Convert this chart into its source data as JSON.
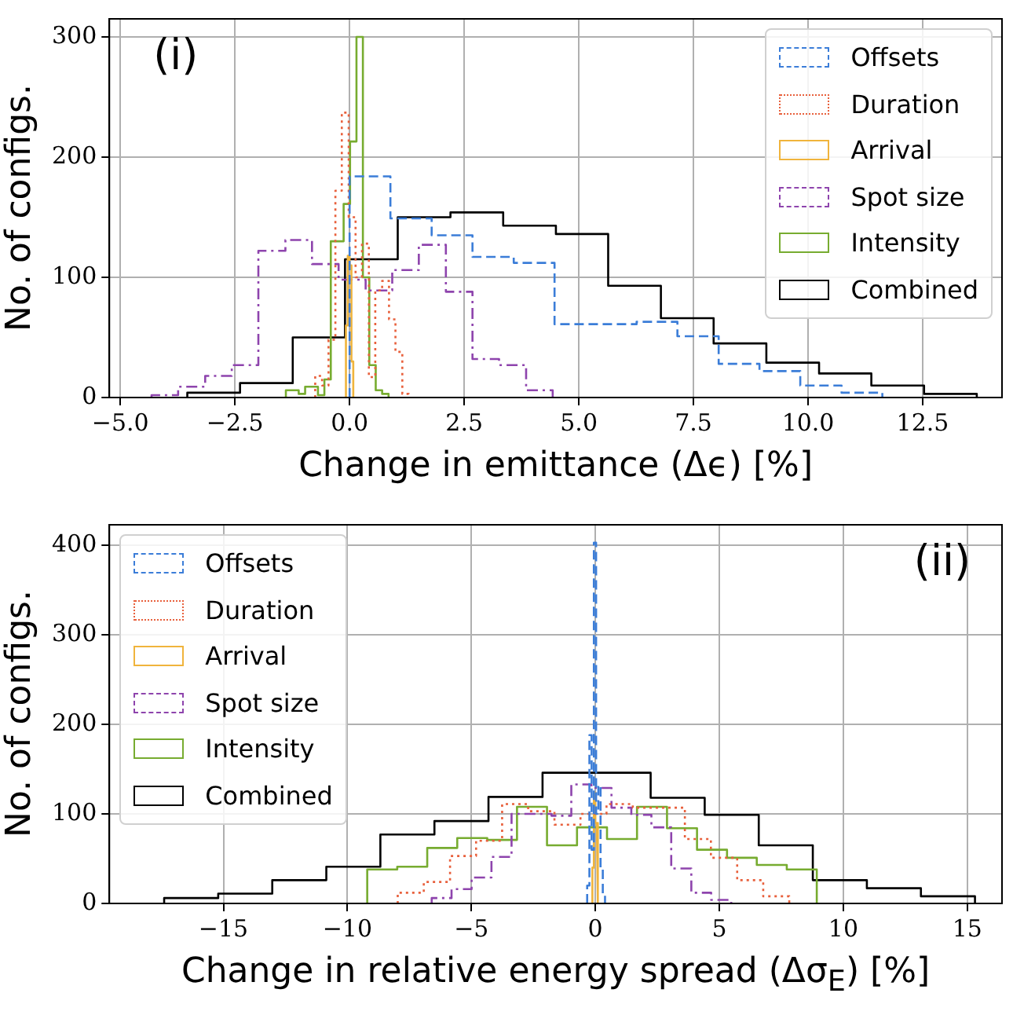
{
  "chart_data": [
    {
      "type": "step",
      "xlabel": "Change in emittance (Δϵ) [%]",
      "ylabel": "No. of configs.",
      "annotations": [
        "(i)"
      ],
      "xlim": [
        -5.24,
        14.23
      ],
      "xticks": [
        {
          "value": -5,
          "label": "−5.0"
        },
        {
          "value": -2.5,
          "label": "−2.5"
        },
        {
          "value": 0,
          "label": "0.0"
        },
        {
          "value": 2.5,
          "label": "2.5"
        },
        {
          "value": 5,
          "label": "5.0"
        },
        {
          "value": 7.5,
          "label": "7.5"
        },
        {
          "value": 10,
          "label": "10.0"
        },
        {
          "value": 12.5,
          "label": "12.5"
        }
      ],
      "ylim": [
        0,
        315
      ],
      "yticks": [
        0,
        100,
        200,
        300
      ],
      "grid": true,
      "legend": "top right",
      "series": [
        {
          "name": "Offsets",
          "color": "#3b7dd8",
          "line_style": "dashed",
          "x": [
            0,
            0,
            0.89,
            1.79,
            2.68,
            3.58,
            4.47,
            5.36,
            6.26,
            7.15,
            8.05,
            8.94,
            9.83,
            10.73,
            11.62
          ],
          "values": [
            0,
            184,
            149,
            135,
            117,
            112,
            61,
            61,
            63,
            51,
            28,
            22,
            10,
            4,
            0
          ]
        },
        {
          "name": "Duration",
          "color": "#e8603c",
          "line_style": "dotted",
          "x": [
            -0.75,
            -0.75,
            -0.6,
            -0.46,
            -0.31,
            -0.17,
            -0.02,
            0.13,
            0.27,
            0.42,
            0.56,
            0.71,
            0.86,
            1.0,
            1.15,
            1.29
          ],
          "values": [
            0,
            18,
            10,
            48,
            172,
            237,
            150,
            100,
            128,
            17,
            89,
            97,
            65,
            38,
            3,
            0
          ]
        },
        {
          "name": "Arrival",
          "color": "#f0b43c",
          "line_style": "solid",
          "x": [
            -0.08,
            -0.08,
            -0.04,
            0,
            0.04,
            0.08
          ],
          "values": [
            0,
            60,
            118,
            110,
            30,
            0
          ]
        },
        {
          "name": "Spot size",
          "color": "#8e44ad",
          "line_style": "dashdot",
          "x": [
            -4.32,
            -4.32,
            -3.74,
            -3.15,
            -2.57,
            -1.99,
            -1.4,
            -0.82,
            -0.24,
            0.35,
            0.93,
            1.51,
            2.1,
            2.68,
            3.26,
            3.85,
            4.43
          ],
          "values": [
            0,
            2,
            9,
            18,
            27,
            122,
            131,
            111,
            98,
            89,
            106,
            127,
            88,
            32,
            27,
            6,
            0
          ]
        },
        {
          "name": "Intensity",
          "color": "#77ac30",
          "line_style": "solid",
          "x": [
            -1.39,
            -1.39,
            -1.25,
            -1.11,
            -0.97,
            -0.83,
            -0.69,
            -0.55,
            -0.41,
            -0.27,
            -0.13,
            0.01,
            0.15,
            0.29,
            0.43,
            0.57,
            0.71,
            0.85
          ],
          "values": [
            0,
            6,
            6,
            3,
            9,
            9,
            2,
            15,
            130,
            130,
            161,
            213,
            300,
            100,
            27,
            6,
            3,
            0
          ]
        },
        {
          "name": "Combined",
          "color": "#000000",
          "line_style": "solid",
          "x": [
            -3.54,
            -3.54,
            -2.39,
            -1.24,
            -0.1,
            1.05,
            2.2,
            3.35,
            4.5,
            5.64,
            6.79,
            7.94,
            9.09,
            10.24,
            11.38,
            12.53,
            13.68
          ],
          "values": [
            0,
            4,
            12,
            50,
            115,
            150,
            154,
            143,
            136,
            93,
            66,
            45,
            29,
            20,
            10,
            3,
            0
          ]
        }
      ]
    },
    {
      "type": "step",
      "xlabel": "Change in relative energy spread (Δσ$_{E}$) [%]",
      "ylabel": "No. of configs.",
      "annotations": [
        "(ii)"
      ],
      "xlim": [
        -19.6,
        16.4
      ],
      "xticks": [
        {
          "value": -15,
          "label": "−15"
        },
        {
          "value": -10,
          "label": "−10"
        },
        {
          "value": -5,
          "label": "−5"
        },
        0,
        5,
        10,
        15
      ],
      "ylim": [
        0,
        423
      ],
      "yticks": [
        0,
        100,
        200,
        300,
        400
      ],
      "grid": true,
      "legend": "top left",
      "series": [
        {
          "name": "Offsets",
          "color": "#3b7dd8",
          "line_style": "dashed",
          "x": [
            -0.33,
            -0.33,
            -0.24,
            -0.15,
            -0.06,
            0.03,
            0.12,
            0.21,
            0.3,
            0.39
          ],
          "values": [
            0,
            20,
            188,
            60,
            403,
            100,
            132,
            40,
            10,
            0
          ]
        },
        {
          "name": "Duration",
          "color": "#e8603c",
          "line_style": "dotted",
          "x": [
            -7.97,
            -7.97,
            -6.92,
            -5.86,
            -4.81,
            -3.76,
            -2.71,
            -1.65,
            -0.6,
            0.45,
            1.51,
            2.56,
            3.61,
            4.66,
            5.72,
            6.77,
            7.82
          ],
          "values": [
            0,
            12,
            24,
            53,
            70,
            111,
            103,
            88,
            100,
            111,
            107,
            107,
            72,
            51,
            26,
            8,
            0
          ]
        },
        {
          "name": "Arrival",
          "color": "#f0b43c",
          "line_style": "solid",
          "x": [
            -0.12,
            -0.12,
            -0.06,
            0,
            0.06,
            0.12
          ],
          "values": [
            0,
            40,
            124,
            90,
            30,
            0
          ]
        },
        {
          "name": "Spot size",
          "color": "#8e44ad",
          "line_style": "dashdot",
          "x": [
            -6.6,
            -6.6,
            -5.8,
            -4.99,
            -4.19,
            -3.38,
            -2.58,
            -1.77,
            -0.97,
            -0.16,
            0.65,
            1.45,
            2.26,
            3.06,
            3.87,
            4.67,
            5.48
          ],
          "values": [
            0,
            6,
            16,
            29,
            52,
            100,
            100,
            98,
            133,
            129,
            107,
            99,
            85,
            39,
            12,
            4,
            0
          ]
        },
        {
          "name": "Intensity",
          "color": "#77ac30",
          "line_style": "solid",
          "x": [
            -9.2,
            -9.2,
            -7.99,
            -6.78,
            -5.57,
            -4.36,
            -3.16,
            -1.95,
            -0.74,
            0.47,
            1.68,
            2.89,
            4.1,
            5.31,
            6.51,
            7.72,
            8.93
          ],
          "values": [
            0,
            38,
            41,
            62,
            73,
            71,
            108,
            65,
            85,
            72,
            108,
            84,
            60,
            51,
            43,
            38,
            0
          ]
        },
        {
          "name": "Combined",
          "color": "#000000",
          "line_style": "solid",
          "x": [
            -17.39,
            -17.39,
            -15.21,
            -13.03,
            -10.85,
            -8.67,
            -6.49,
            -4.31,
            -2.13,
            0.05,
            2.23,
            4.41,
            6.59,
            8.77,
            10.95,
            13.13,
            15.31
          ],
          "values": [
            0,
            6,
            11,
            26,
            41,
            77,
            92,
            119,
            146,
            146,
            118,
            99,
            65,
            26,
            17,
            8,
            0
          ]
        }
      ]
    }
  ]
}
